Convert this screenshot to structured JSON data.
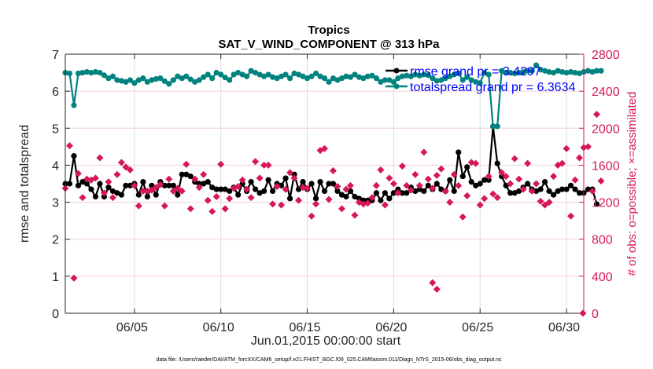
{
  "chart_data": {
    "type": "line",
    "title": "Tropics",
    "subtitle": "SAT_V_WIND_COMPONENT @ 313 hPa",
    "xlabel": "Jun.01,2015 00:00:00 start",
    "ylabel": "rmse and totalspread",
    "ylabel_right": "# of obs: o=possible; ×=assimilated",
    "footnote": "data file: /Users/raeder/DAI/ATM_forcXX/CAM6_setup/f.e21.FHIST_BGC.f09_025.CAM6assim.011/Diags_NTrS_2015-06/obs_diag_output.nc",
    "xlim": [
      1,
      31
    ],
    "ylim": [
      0,
      7
    ],
    "ylim_right": [
      0,
      2800
    ],
    "x_ticks": [
      5,
      10,
      15,
      20,
      25,
      30
    ],
    "x_tick_labels": [
      "06/05",
      "06/10",
      "06/15",
      "06/20",
      "06/25",
      "06/30"
    ],
    "y_ticks": [
      "0",
      "1",
      "2",
      "3",
      "4",
      "5",
      "6",
      "7"
    ],
    "y_ticks_right": [
      "0",
      "400",
      "800",
      "1200",
      "1600",
      "2000",
      "2400",
      "2800"
    ],
    "grid": true,
    "legend_position": "top-right",
    "x_start": 1.0,
    "x_step": 0.25,
    "series": [
      {
        "name": "rmse grand pr = 3.4297",
        "color": "#000000",
        "axis": "left",
        "marker": "circle",
        "values": [
          3.5,
          3.5,
          4.25,
          3.45,
          3.55,
          3.5,
          3.35,
          3.15,
          3.5,
          3.15,
          3.4,
          3.3,
          3.25,
          3.2,
          3.45,
          3.45,
          3.5,
          3.2,
          3.55,
          3.15,
          3.45,
          3.2,
          3.55,
          3.45,
          3.45,
          3.45,
          3.2,
          3.75,
          3.75,
          3.7,
          3.55,
          3.5,
          3.5,
          3.55,
          3.4,
          3.35,
          3.35,
          3.35,
          3.3,
          3.4,
          3.2,
          3.5,
          3.3,
          3.55,
          3.35,
          3.25,
          3.3,
          3.6,
          3.3,
          3.5,
          3.45,
          3.65,
          3.1,
          3.75,
          3.35,
          3.55,
          3.35,
          3.5,
          3.1,
          3.55,
          3.3,
          3.5,
          3.5,
          3.3,
          3.2,
          3.15,
          3.3,
          3.15,
          3.1,
          3.05,
          3.05,
          3.05,
          3.25,
          3.05,
          3.25,
          3.1,
          3.25,
          3.35,
          3.25,
          3.25,
          3.4,
          3.3,
          3.35,
          3.3,
          3.45,
          3.35,
          3.5,
          3.35,
          3.3,
          3.6,
          3.3,
          4.35,
          3.7,
          3.95,
          3.55,
          3.45,
          3.5,
          3.6,
          3.6,
          5.05,
          4.05,
          3.7,
          3.45,
          3.25,
          3.25,
          3.3,
          3.4,
          3.5,
          3.35,
          3.3,
          3.35,
          3.55,
          3.3,
          3.2,
          3.3,
          3.35,
          3.35,
          3.45,
          3.35,
          3.25,
          3.25,
          3.35,
          3.35,
          2.95
        ]
      },
      {
        "name": "totalspread grand pr = 6.3634",
        "color": "#00827f",
        "axis": "left",
        "marker": "circle",
        "values": [
          6.5,
          6.48,
          5.62,
          6.48,
          6.5,
          6.52,
          6.5,
          6.52,
          6.5,
          6.43,
          6.35,
          6.4,
          6.3,
          6.28,
          6.25,
          6.3,
          6.22,
          6.3,
          6.35,
          6.25,
          6.3,
          6.33,
          6.35,
          6.27,
          6.2,
          6.3,
          6.4,
          6.35,
          6.4,
          6.32,
          6.25,
          6.3,
          6.38,
          6.45,
          6.35,
          6.5,
          6.45,
          6.37,
          6.3,
          6.45,
          6.5,
          6.45,
          6.4,
          6.55,
          6.5,
          6.45,
          6.4,
          6.45,
          6.38,
          6.35,
          6.4,
          6.45,
          6.35,
          6.48,
          6.45,
          6.4,
          6.35,
          6.4,
          6.48,
          6.4,
          6.35,
          6.25,
          6.35,
          6.3,
          6.35,
          6.4,
          6.38,
          6.45,
          6.38,
          6.35,
          6.4,
          6.42,
          6.35,
          6.25,
          6.3,
          6.3,
          6.25,
          6.35,
          6.4,
          6.42,
          6.4,
          6.45,
          6.42,
          6.45,
          6.43,
          6.35,
          6.28,
          6.3,
          6.35,
          6.4,
          6.45,
          6.48,
          6.3,
          6.38,
          6.3,
          6.25,
          6.22,
          6.5,
          6.45,
          5.05,
          5.05,
          6.55,
          6.5,
          6.5,
          6.48,
          6.5,
          6.52,
          6.55,
          6.55,
          6.7,
          6.58,
          6.55,
          6.52,
          6.5,
          6.55,
          6.52,
          6.5,
          6.52,
          6.5,
          6.48,
          6.52,
          6.55,
          6.52,
          6.55,
          6.55
        ]
      },
      {
        "name": "# obs assimilated",
        "color": "#d6175a",
        "axis": "right",
        "marker": "x",
        "values": [
          1350,
          1810,
          380,
          1510,
          1250,
          1450,
          1440,
          1460,
          1680,
          1300,
          1420,
          1250,
          1500,
          1630,
          1580,
          1550,
          1380,
          1160,
          1320,
          1320,
          1330,
          1360,
          1390,
          1160,
          1450,
          1320,
          1350,
          1320,
          1610,
          1130,
          1450,
          1360,
          1500,
          1220,
          1100,
          1260,
          1610,
          1130,
          1240,
          1350,
          1370,
          1440,
          1340,
          1250,
          1640,
          1460,
          1600,
          1600,
          1180,
          1370,
          1170,
          1340,
          1520,
          1460,
          1220,
          1360,
          1350,
          1050,
          1180,
          1760,
          1780,
          1230,
          1540,
          1370,
          1130,
          1340,
          1380,
          1060,
          1200,
          1180,
          1190,
          1250,
          1380,
          1550,
          1170,
          1460,
          1400,
          1300,
          1590,
          1380,
          1330,
          1500,
          1380,
          1740,
          1450,
          1350,
          1490,
          1560,
          1320,
          1200,
          1500,
          1380,
          1040,
          1270,
          1630,
          1620,
          1170,
          1240,
          1480,
          1290,
          1250,
          1520,
          1480,
          1400,
          1670,
          1450,
          1340,
          1620,
          1320,
          1400,
          1210,
          1170,
          1200,
          1480,
          1600,
          1620,
          1780,
          1050,
          1440,
          1680,
          1790,
          1800,
          1320,
          2150,
          1430
        ]
      }
    ]
  },
  "legend": {
    "items": [
      {
        "label": "rmse grand pr = 3.4297",
        "color": "#000000"
      },
      {
        "label": "totalspread grand pr = 6.3634",
        "color": "#00827f"
      }
    ]
  },
  "extra_points": {
    "assimilated_low_pairs": [
      [
        22.25,
        330
      ],
      [
        22.5,
        260
      ]
    ],
    "right_edge_zero": [
      30.95,
      0
    ]
  }
}
